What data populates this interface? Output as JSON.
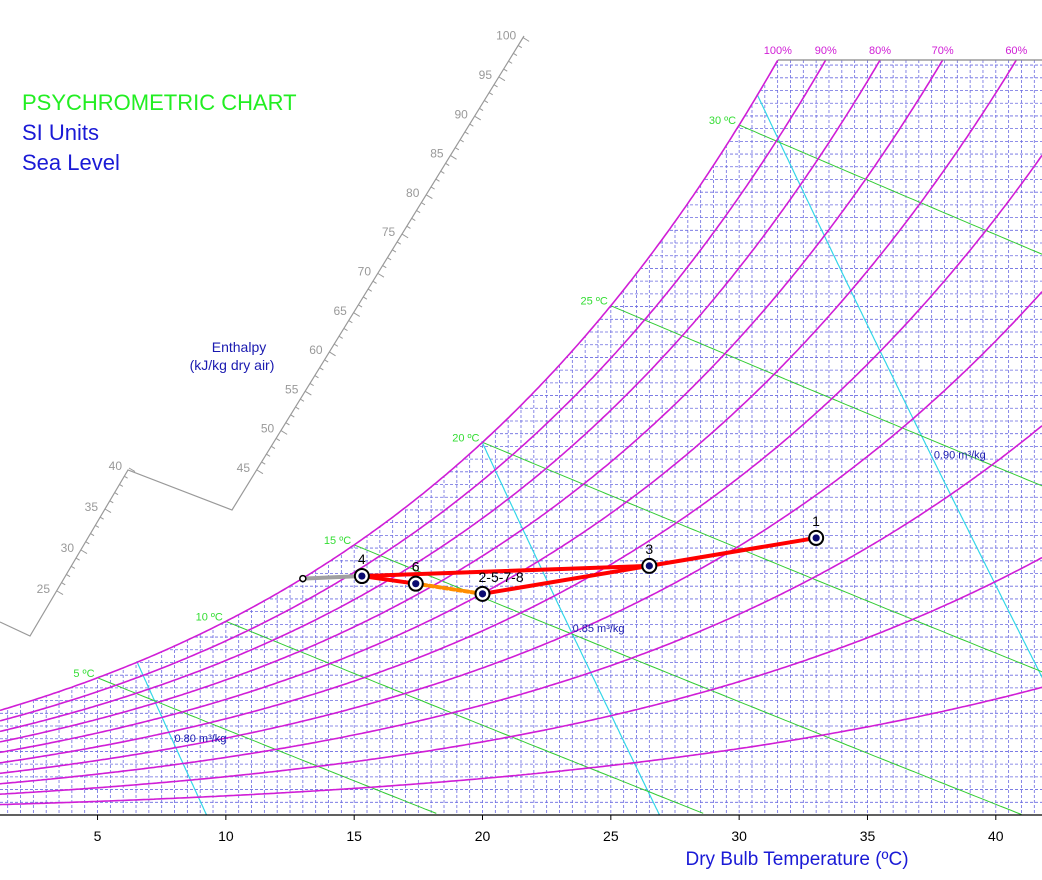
{
  "chart_data": {
    "type": "psychrometric",
    "title": "PSYCHROMETRIC CHART",
    "subtitle": "SI Units",
    "altitude": "Sea Level",
    "x_label": "Dry Bulb Temperature (ºC)",
    "enthalpy_label": "Enthalpy",
    "enthalpy_unit": "(kJ/kg dry air)",
    "xlim": [
      1.2,
      41.8
    ],
    "ylim": [
      0,
      29.7
    ],
    "xticks": [
      5,
      10,
      15,
      20,
      25,
      30,
      35,
      40
    ],
    "x_grid": [
      1.5,
      2,
      2.5,
      3,
      3.5,
      4,
      4.5,
      5,
      5.5,
      6,
      6.5,
      7,
      7.5,
      8,
      8.5,
      9,
      9.5,
      10,
      10.5,
      11,
      11.5,
      12,
      12.5,
      13,
      13.5,
      14,
      14.5,
      15,
      15.5,
      16,
      16.5,
      17,
      17.5,
      18,
      18.5,
      19,
      19.5,
      20,
      20.5,
      21,
      21.5,
      22,
      22.5,
      23,
      23.5,
      24,
      24.5,
      25,
      25.5,
      26,
      26.5,
      27,
      27.5,
      28,
      28.5,
      29,
      29.5,
      30,
      30.5,
      31,
      31.5,
      32,
      32.5,
      33,
      33.5,
      34,
      34.5,
      35,
      35.5,
      36,
      36.5,
      37,
      37.5,
      38,
      38.5,
      39,
      39.5,
      40,
      40.5,
      41,
      41.5
    ],
    "y_grid": [
      0.5,
      1,
      1.5,
      2,
      2.5,
      3,
      3.5,
      4,
      4.5,
      5,
      5.5,
      6,
      6.5,
      7,
      7.5,
      8,
      8.5,
      9,
      9.5,
      10,
      10.5,
      11,
      11.5,
      12,
      12.5,
      13,
      13.5,
      14,
      14.5,
      15,
      15.5,
      16,
      16.5,
      17,
      17.5,
      18,
      18.5,
      19,
      19.5,
      20,
      20.5,
      21,
      21.5,
      22,
      22.5,
      23,
      23.5,
      24,
      24.5,
      25,
      25.5,
      26,
      26.5,
      27,
      27.5,
      28,
      28.5,
      29,
      29.5
    ],
    "grid": true,
    "rh_values": [
      100,
      90,
      80,
      70,
      60,
      50,
      40,
      30,
      20,
      10
    ],
    "rh_labels": [
      "100%",
      "90%",
      "80%",
      "70%",
      "60%",
      null,
      null,
      null,
      null,
      null
    ],
    "rh_color": "#d01ed6",
    "wet_bulb": [
      {
        "value": 5,
        "label": "5 ºC"
      },
      {
        "value": 10,
        "label": "10 ºC"
      },
      {
        "value": 15,
        "label": "15 ºC"
      },
      {
        "value": 20,
        "label": "20 ºC"
      },
      {
        "value": 25,
        "label": "25 ºC"
      },
      {
        "value": 30,
        "label": "30 ºC"
      }
    ],
    "wet_bulb_color": "#33cc33",
    "specific_volume": [
      {
        "value": 0.8,
        "label": "0.80 m³/kg"
      },
      {
        "value": 0.85,
        "label": "0.85 m³/kg"
      },
      {
        "value": 0.9,
        "label": "0.90 m³/kg"
      }
    ],
    "specific_volume_color": "#33d6e8",
    "enthalpy_ticks": [
      25,
      30,
      35,
      40,
      45,
      50,
      55,
      60,
      65,
      70,
      75,
      80,
      85,
      90,
      95,
      100
    ],
    "points": {
      "labels": [
        "1",
        "3",
        "4",
        "6",
        "2-5-7-8",
        null
      ],
      "x": [
        33.0,
        26.5,
        15.3,
        17.4,
        20.0,
        13.0
      ],
      "y": [
        10.9,
        9.8,
        9.4,
        9.1,
        8.7,
        9.3
      ],
      "markers": [
        "ring",
        "ring",
        "ring",
        "ring",
        "ring",
        "small"
      ]
    },
    "segments": [
      {
        "from": 0,
        "to": 1,
        "color": "#ff0000",
        "dashed": false
      },
      {
        "from": 1,
        "to": 2,
        "color": "#ff0000",
        "dashed": false
      },
      {
        "from": 2,
        "to": 3,
        "color": "#ff0000",
        "dashed": false
      },
      {
        "from": 1,
        "to": 4,
        "color": "#ff0000",
        "dashed": false
      },
      {
        "from": 3,
        "to": 4,
        "color": "#ff8c00",
        "dashed": true
      },
      {
        "from": 2,
        "to": 5,
        "color": "#a0a0a0",
        "dashed": false
      }
    ]
  }
}
